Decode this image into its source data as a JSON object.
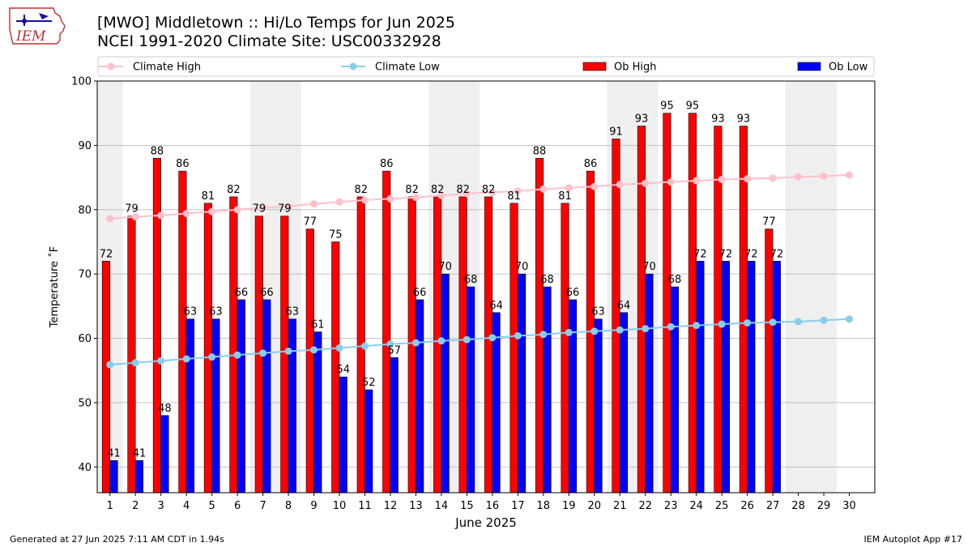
{
  "header": {
    "title_line1": "[MWO] Middletown :: Hi/Lo Temps for Jun 2025",
    "title_line2": "NCEI 1991-2020 Climate Site: USC00332928",
    "logo_text": "IEM"
  },
  "footer": {
    "generated": "Generated at 27 Jun 2025 7:11 AM CDT in 1.94s",
    "app": "IEM Autoplot App #17"
  },
  "colors": {
    "ob_high": "#ff0000",
    "ob_low": "#0000ff",
    "climate_high": "#ffc0cb",
    "climate_low": "#87ceeb",
    "weekend_shade": "#efefef",
    "grid": "#b0b0b0"
  },
  "chart_data": {
    "type": "bar",
    "xlabel": "June 2025",
    "ylabel": "Temperature ˚F",
    "ylim": [
      36,
      100
    ],
    "yticks": [
      40,
      50,
      60,
      70,
      80,
      90,
      100
    ],
    "grid": "horizontal",
    "legend_position": "top",
    "categories": [
      "1",
      "2",
      "3",
      "4",
      "5",
      "6",
      "7",
      "8",
      "9",
      "10",
      "11",
      "12",
      "13",
      "14",
      "15",
      "16",
      "17",
      "18",
      "19",
      "20",
      "21",
      "22",
      "23",
      "24",
      "25",
      "26",
      "27",
      "28",
      "29",
      "30"
    ],
    "weekend_spans": [
      [
        1,
        1
      ],
      [
        7,
        8
      ],
      [
        14,
        15
      ],
      [
        21,
        22
      ],
      [
        28,
        29
      ]
    ],
    "series": [
      {
        "name": "Climate High",
        "kind": "line",
        "values": [
          78.6,
          78.9,
          79.1,
          79.4,
          79.7,
          80.0,
          80.3,
          80.5,
          80.9,
          81.2,
          81.5,
          81.7,
          81.9,
          82.2,
          82.5,
          82.7,
          82.9,
          83.2,
          83.4,
          83.6,
          83.9,
          84.1,
          84.3,
          84.5,
          84.7,
          84.8,
          84.9,
          85.1,
          85.2,
          85.4
        ]
      },
      {
        "name": "Climate Low",
        "kind": "line",
        "values": [
          55.9,
          56.2,
          56.5,
          56.8,
          57.1,
          57.4,
          57.7,
          58.0,
          58.2,
          58.5,
          58.8,
          59.1,
          59.3,
          59.6,
          59.8,
          60.1,
          60.4,
          60.6,
          60.9,
          61.1,
          61.3,
          61.5,
          61.8,
          62.0,
          62.2,
          62.4,
          62.5,
          62.6,
          62.8,
          63.0
        ]
      },
      {
        "name": "Ob High",
        "kind": "bar",
        "values": [
          72,
          79,
          88,
          86,
          81,
          82,
          79,
          79,
          77,
          75,
          82,
          86,
          82,
          82,
          82,
          82,
          81,
          88,
          81,
          86,
          91,
          93,
          95,
          95,
          93,
          93,
          77,
          null,
          null,
          null
        ]
      },
      {
        "name": "Ob Low",
        "kind": "bar",
        "values": [
          41,
          41,
          48,
          63,
          63,
          66,
          66,
          63,
          61,
          54,
          52,
          57,
          66,
          70,
          68,
          64,
          70,
          68,
          66,
          63,
          64,
          70,
          68,
          72,
          72,
          72,
          72,
          null,
          null,
          null
        ]
      }
    ]
  }
}
